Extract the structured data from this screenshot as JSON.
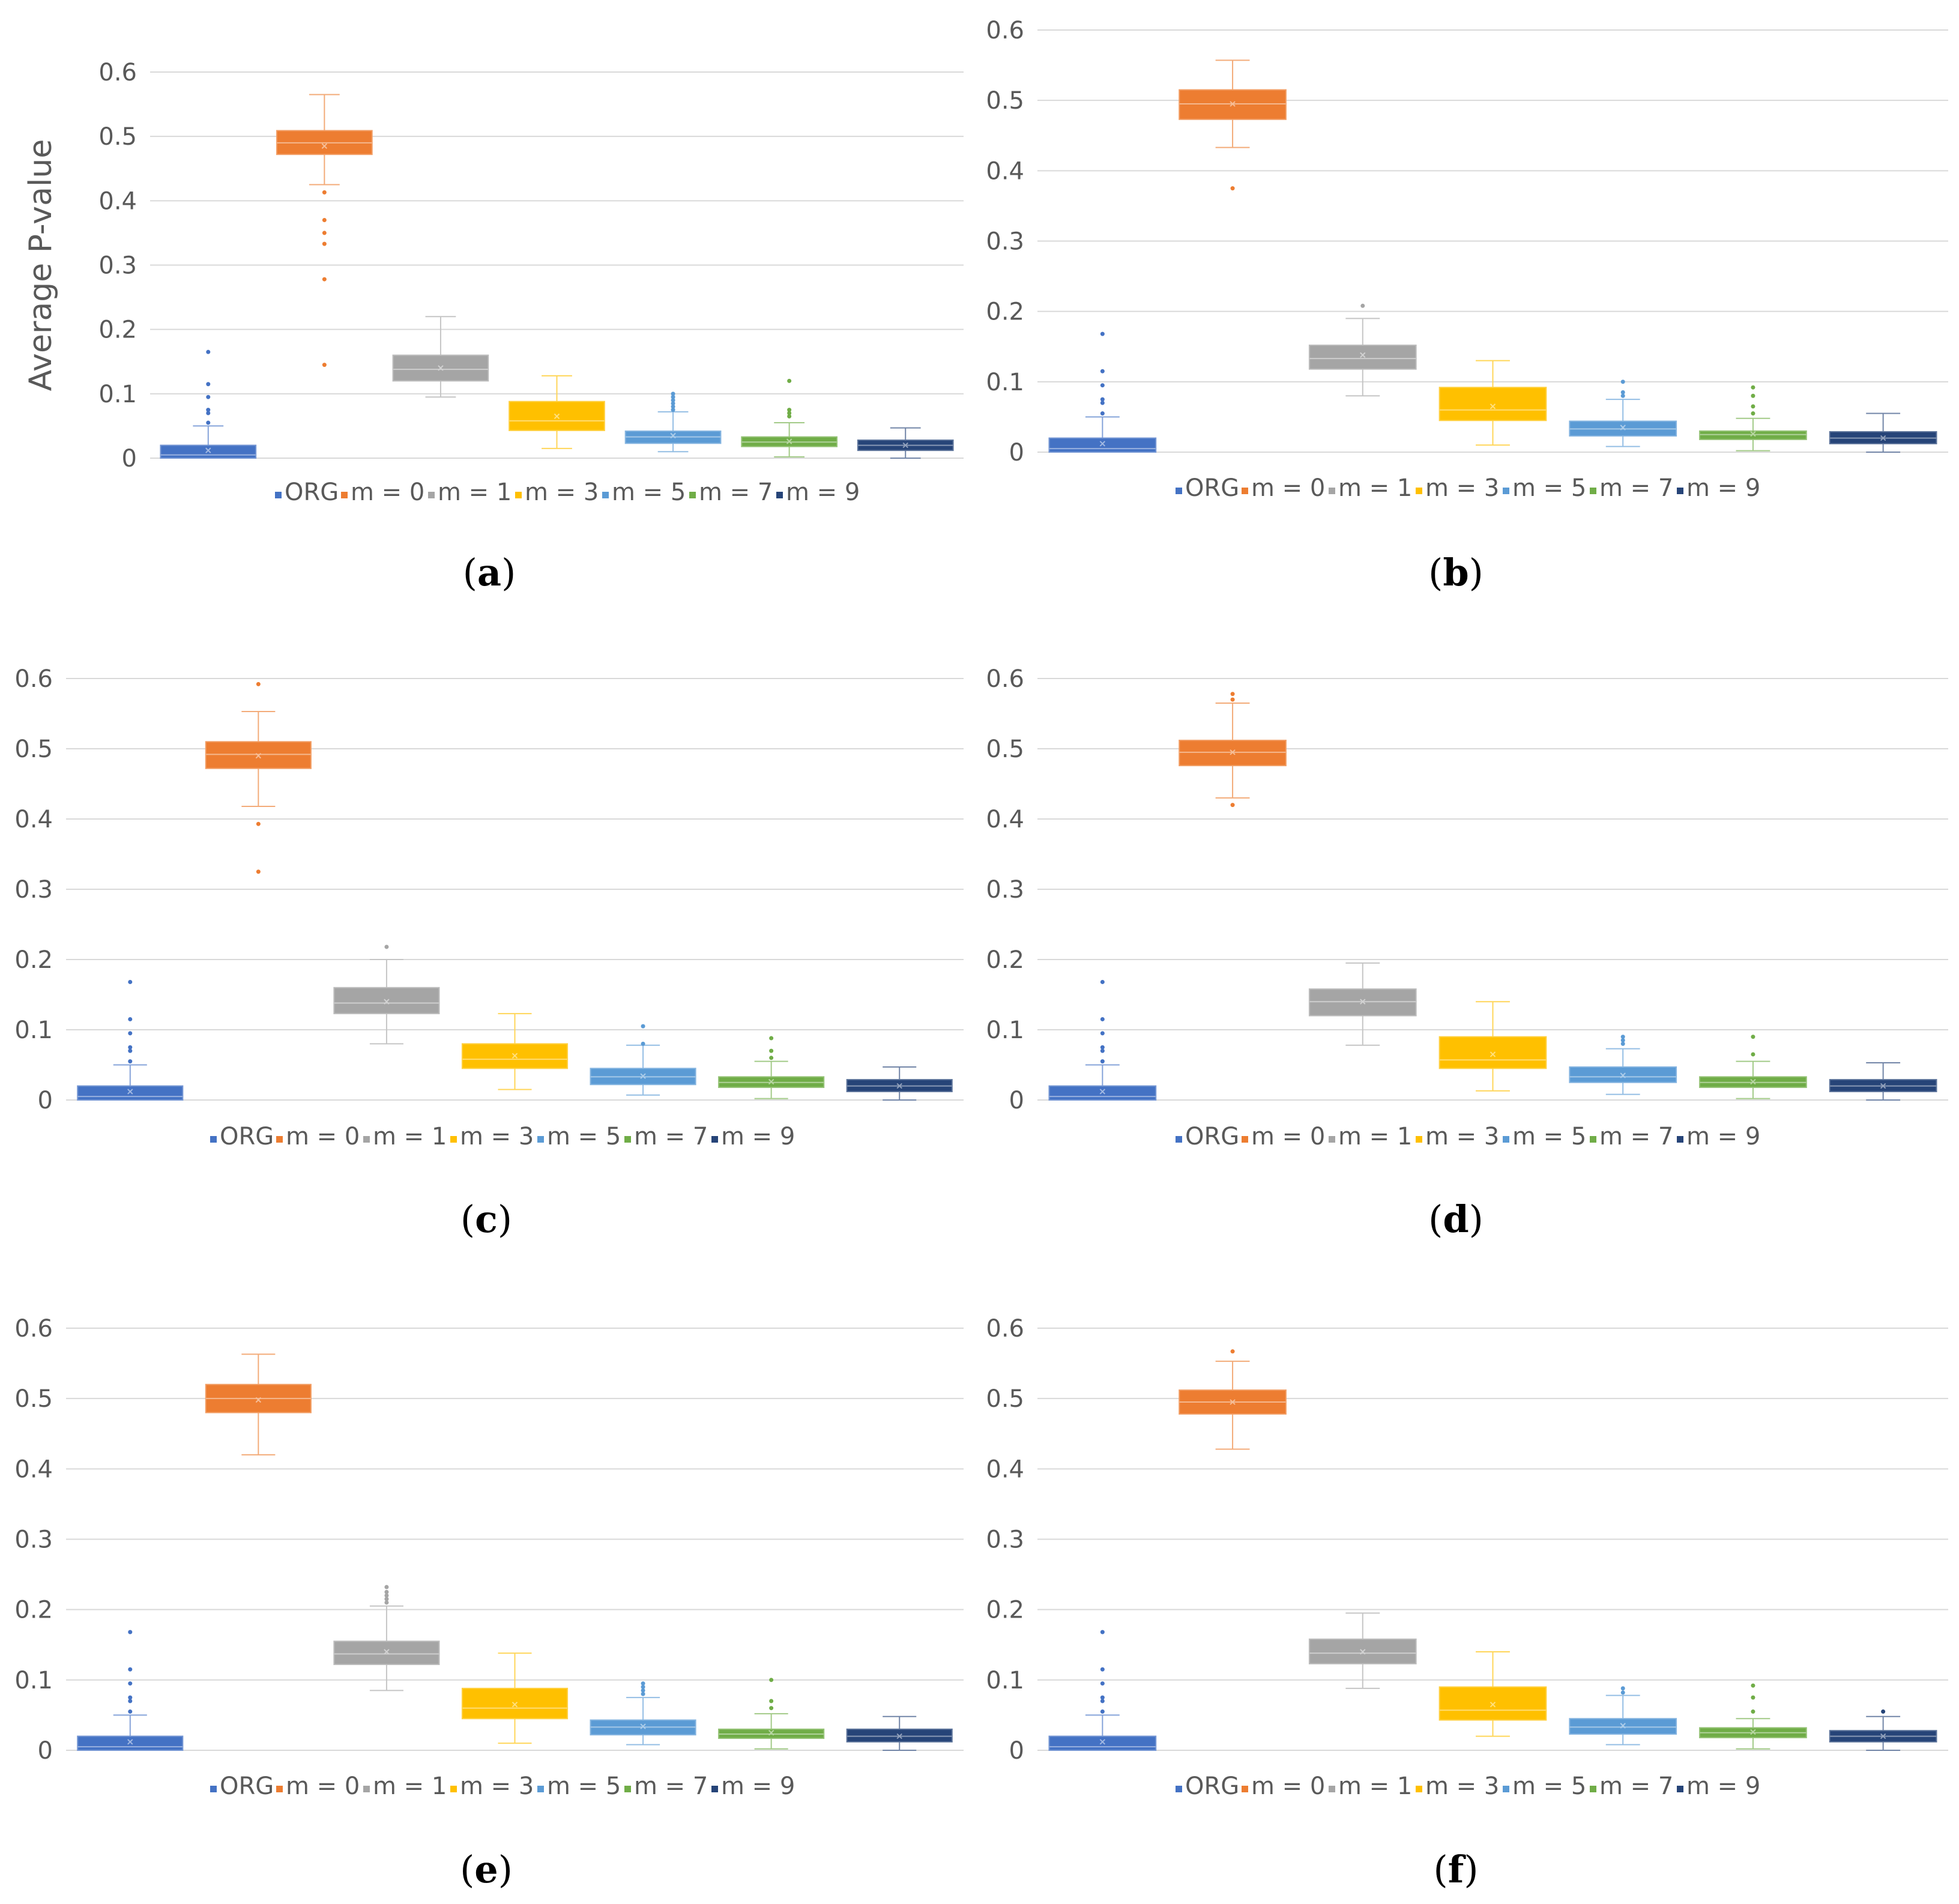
{
  "figure": {
    "panels_layout": "3 rows x 2 columns"
  },
  "chart_data": [
    {
      "type": "boxplot",
      "panel": "a",
      "caption_letter": "a",
      "ylabel": "Average P-value",
      "ylim": [
        0,
        0.6
      ],
      "yticks": [
        "0",
        "0.1",
        "0.2",
        "0.3",
        "0.4",
        "0.5",
        "0.6"
      ],
      "legend": [
        "ORG",
        "m = 0",
        "m = 1",
        "m = 3",
        "m = 5",
        "m = 7",
        "m = 9"
      ],
      "series": [
        {
          "name": "ORG",
          "color": "#4472C4",
          "wlo": 0,
          "q1": 0.0,
          "med": 0.005,
          "q3": 0.02,
          "whi": 0.05,
          "mean": 0.012,
          "outliers": [
            0.055,
            0.07,
            0.075,
            0.095,
            0.115,
            0.165
          ]
        },
        {
          "name": "m = 0",
          "color": "#ED7D31",
          "wlo": 0.425,
          "q1": 0.472,
          "med": 0.49,
          "q3": 0.509,
          "whi": 0.565,
          "mean": 0.485,
          "outliers": [
            0.145,
            0.278,
            0.333,
            0.35,
            0.37,
            0.413
          ]
        },
        {
          "name": "m = 1",
          "color": "#A5A5A5",
          "wlo": 0.095,
          "q1": 0.12,
          "med": 0.138,
          "q3": 0.16,
          "whi": 0.22,
          "mean": 0.14,
          "outliers": []
        },
        {
          "name": "m = 3",
          "color": "#FFC000",
          "wlo": 0.015,
          "q1": 0.043,
          "med": 0.058,
          "q3": 0.088,
          "whi": 0.128,
          "mean": 0.065,
          "outliers": []
        },
        {
          "name": "m = 5",
          "color": "#5B9BD5",
          "wlo": 0.01,
          "q1": 0.023,
          "med": 0.033,
          "q3": 0.042,
          "whi": 0.072,
          "mean": 0.035,
          "outliers": [
            0.075,
            0.08,
            0.085,
            0.09,
            0.095,
            0.1
          ]
        },
        {
          "name": "m = 7",
          "color": "#70AD47",
          "wlo": 0.002,
          "q1": 0.018,
          "med": 0.025,
          "q3": 0.033,
          "whi": 0.055,
          "mean": 0.026,
          "outliers": [
            0.065,
            0.07,
            0.075,
            0.12
          ]
        },
        {
          "name": "m = 9",
          "color": "#264478",
          "wlo": 0.0,
          "q1": 0.012,
          "med": 0.02,
          "q3": 0.028,
          "whi": 0.047,
          "mean": 0.02,
          "outliers": []
        }
      ]
    },
    {
      "type": "boxplot",
      "panel": "b",
      "caption_letter": "b",
      "ylabel": "",
      "ylim": [
        0,
        0.6
      ],
      "yticks": [
        "0",
        "0.1",
        "0.2",
        "0.3",
        "0.4",
        "0.5",
        "0.6"
      ],
      "legend": [
        "ORG",
        "m = 0",
        "m = 1",
        "m = 3",
        "m = 5",
        "m = 7",
        "m = 9"
      ],
      "series": [
        {
          "name": "ORG",
          "color": "#4472C4",
          "wlo": 0,
          "q1": 0.0,
          "med": 0.005,
          "q3": 0.02,
          "whi": 0.05,
          "mean": 0.012,
          "outliers": [
            0.055,
            0.07,
            0.075,
            0.095,
            0.115,
            0.168
          ]
        },
        {
          "name": "m = 0",
          "color": "#ED7D31",
          "wlo": 0.433,
          "q1": 0.473,
          "med": 0.495,
          "q3": 0.515,
          "whi": 0.557,
          "mean": 0.495,
          "outliers": [
            0.375
          ]
        },
        {
          "name": "m = 1",
          "color": "#A5A5A5",
          "wlo": 0.08,
          "q1": 0.118,
          "med": 0.133,
          "q3": 0.152,
          "whi": 0.19,
          "mean": 0.138,
          "outliers": [
            0.208
          ]
        },
        {
          "name": "m = 3",
          "color": "#FFC000",
          "wlo": 0.01,
          "q1": 0.045,
          "med": 0.06,
          "q3": 0.092,
          "whi": 0.13,
          "mean": 0.065,
          "outliers": []
        },
        {
          "name": "m = 5",
          "color": "#5B9BD5",
          "wlo": 0.008,
          "q1": 0.023,
          "med": 0.033,
          "q3": 0.044,
          "whi": 0.075,
          "mean": 0.035,
          "outliers": [
            0.08,
            0.085,
            0.1
          ]
        },
        {
          "name": "m = 7",
          "color": "#70AD47",
          "wlo": 0.002,
          "q1": 0.018,
          "med": 0.025,
          "q3": 0.03,
          "whi": 0.048,
          "mean": 0.026,
          "outliers": [
            0.055,
            0.065,
            0.08,
            0.092
          ]
        },
        {
          "name": "m = 9",
          "color": "#264478",
          "wlo": 0.0,
          "q1": 0.012,
          "med": 0.02,
          "q3": 0.029,
          "whi": 0.055,
          "mean": 0.02,
          "outliers": []
        }
      ]
    },
    {
      "type": "boxplot",
      "panel": "c",
      "caption_letter": "c",
      "ylabel": "",
      "ylim": [
        0,
        0.6
      ],
      "yticks": [
        "0",
        "0.1",
        "0.2",
        "0.3",
        "0.4",
        "0.5",
        "0.6"
      ],
      "legend": [
        "ORG",
        "m = 0",
        "m = 1",
        "m = 3",
        "m = 5",
        "m = 7",
        "m = 9"
      ],
      "series": [
        {
          "name": "ORG",
          "color": "#4472C4",
          "wlo": 0,
          "q1": 0.0,
          "med": 0.005,
          "q3": 0.02,
          "whi": 0.05,
          "mean": 0.012,
          "outliers": [
            0.055,
            0.07,
            0.075,
            0.095,
            0.115,
            0.168
          ]
        },
        {
          "name": "m = 0",
          "color": "#ED7D31",
          "wlo": 0.418,
          "q1": 0.472,
          "med": 0.492,
          "q3": 0.51,
          "whi": 0.553,
          "mean": 0.49,
          "outliers": [
            0.325,
            0.393,
            0.592
          ]
        },
        {
          "name": "m = 1",
          "color": "#A5A5A5",
          "wlo": 0.08,
          "q1": 0.123,
          "med": 0.138,
          "q3": 0.16,
          "whi": 0.2,
          "mean": 0.14,
          "outliers": [
            0.218
          ]
        },
        {
          "name": "m = 3",
          "color": "#FFC000",
          "wlo": 0.015,
          "q1": 0.045,
          "med": 0.058,
          "q3": 0.08,
          "whi": 0.123,
          "mean": 0.063,
          "outliers": []
        },
        {
          "name": "m = 5",
          "color": "#5B9BD5",
          "wlo": 0.007,
          "q1": 0.022,
          "med": 0.033,
          "q3": 0.045,
          "whi": 0.078,
          "mean": 0.034,
          "outliers": [
            0.08,
            0.105
          ]
        },
        {
          "name": "m = 7",
          "color": "#70AD47",
          "wlo": 0.002,
          "q1": 0.018,
          "med": 0.025,
          "q3": 0.033,
          "whi": 0.055,
          "mean": 0.026,
          "outliers": [
            0.06,
            0.07,
            0.088
          ]
        },
        {
          "name": "m = 9",
          "color": "#264478",
          "wlo": 0.0,
          "q1": 0.012,
          "med": 0.02,
          "q3": 0.029,
          "whi": 0.047,
          "mean": 0.02,
          "outliers": []
        }
      ]
    },
    {
      "type": "boxplot",
      "panel": "d",
      "caption_letter": "d",
      "ylabel": "",
      "ylim": [
        0,
        0.6
      ],
      "yticks": [
        "0",
        "0.1",
        "0.2",
        "0.3",
        "0.4",
        "0.5",
        "0.6"
      ],
      "legend": [
        "ORG",
        "m = 0",
        "m = 1",
        "m = 3",
        "m = 5",
        "m = 7",
        "m = 9"
      ],
      "series": [
        {
          "name": "ORG",
          "color": "#4472C4",
          "wlo": 0,
          "q1": 0.0,
          "med": 0.005,
          "q3": 0.02,
          "whi": 0.05,
          "mean": 0.012,
          "outliers": [
            0.055,
            0.07,
            0.075,
            0.095,
            0.115,
            0.168
          ]
        },
        {
          "name": "m = 0",
          "color": "#ED7D31",
          "wlo": 0.43,
          "q1": 0.476,
          "med": 0.495,
          "q3": 0.512,
          "whi": 0.565,
          "mean": 0.495,
          "outliers": [
            0.42,
            0.57,
            0.578
          ]
        },
        {
          "name": "m = 1",
          "color": "#A5A5A5",
          "wlo": 0.078,
          "q1": 0.12,
          "med": 0.14,
          "q3": 0.158,
          "whi": 0.195,
          "mean": 0.14,
          "outliers": []
        },
        {
          "name": "m = 3",
          "color": "#FFC000",
          "wlo": 0.013,
          "q1": 0.045,
          "med": 0.057,
          "q3": 0.09,
          "whi": 0.14,
          "mean": 0.065,
          "outliers": []
        },
        {
          "name": "m = 5",
          "color": "#5B9BD5",
          "wlo": 0.008,
          "q1": 0.025,
          "med": 0.033,
          "q3": 0.047,
          "whi": 0.073,
          "mean": 0.035,
          "outliers": [
            0.08,
            0.085,
            0.09
          ]
        },
        {
          "name": "m = 7",
          "color": "#70AD47",
          "wlo": 0.002,
          "q1": 0.018,
          "med": 0.025,
          "q3": 0.033,
          "whi": 0.055,
          "mean": 0.026,
          "outliers": [
            0.065,
            0.09
          ]
        },
        {
          "name": "m = 9",
          "color": "#264478",
          "wlo": 0.0,
          "q1": 0.012,
          "med": 0.02,
          "q3": 0.029,
          "whi": 0.053,
          "mean": 0.02,
          "outliers": []
        }
      ]
    },
    {
      "type": "boxplot",
      "panel": "e",
      "caption_letter": "e",
      "ylabel": "",
      "ylim": [
        0,
        0.6
      ],
      "yticks": [
        "0",
        "0.1",
        "0.2",
        "0.3",
        "0.4",
        "0.5",
        "0.6"
      ],
      "legend": [
        "ORG",
        "m = 0",
        "m = 1",
        "m = 3",
        "m = 5",
        "m = 7",
        "m = 9"
      ],
      "series": [
        {
          "name": "ORG",
          "color": "#4472C4",
          "wlo": 0,
          "q1": 0.0,
          "med": 0.005,
          "q3": 0.02,
          "whi": 0.05,
          "mean": 0.012,
          "outliers": [
            0.055,
            0.07,
            0.075,
            0.095,
            0.115,
            0.168
          ]
        },
        {
          "name": "m = 0",
          "color": "#ED7D31",
          "wlo": 0.42,
          "q1": 0.48,
          "med": 0.5,
          "q3": 0.52,
          "whi": 0.563,
          "mean": 0.498,
          "outliers": []
        },
        {
          "name": "m = 1",
          "color": "#A5A5A5",
          "wlo": 0.085,
          "q1": 0.122,
          "med": 0.137,
          "q3": 0.155,
          "whi": 0.205,
          "mean": 0.14,
          "outliers": [
            0.21,
            0.215,
            0.22,
            0.225,
            0.232
          ]
        },
        {
          "name": "m = 3",
          "color": "#FFC000",
          "wlo": 0.01,
          "q1": 0.045,
          "med": 0.06,
          "q3": 0.088,
          "whi": 0.138,
          "mean": 0.065,
          "outliers": []
        },
        {
          "name": "m = 5",
          "color": "#5B9BD5",
          "wlo": 0.008,
          "q1": 0.022,
          "med": 0.033,
          "q3": 0.043,
          "whi": 0.075,
          "mean": 0.034,
          "outliers": [
            0.08,
            0.085,
            0.09,
            0.095
          ]
        },
        {
          "name": "m = 7",
          "color": "#70AD47",
          "wlo": 0.002,
          "q1": 0.017,
          "med": 0.023,
          "q3": 0.03,
          "whi": 0.052,
          "mean": 0.025,
          "outliers": [
            0.06,
            0.07,
            0.1
          ]
        },
        {
          "name": "m = 9",
          "color": "#264478",
          "wlo": 0.0,
          "q1": 0.012,
          "med": 0.02,
          "q3": 0.03,
          "whi": 0.048,
          "mean": 0.02,
          "outliers": []
        }
      ]
    },
    {
      "type": "boxplot",
      "panel": "f",
      "caption_letter": "f",
      "ylabel": "",
      "ylim": [
        0,
        0.6
      ],
      "yticks": [
        "0",
        "0.1",
        "0.2",
        "0.3",
        "0.4",
        "0.5",
        "0.6"
      ],
      "legend": [
        "ORG",
        "m = 0",
        "m = 1",
        "m = 3",
        "m = 5",
        "m = 7",
        "m = 9"
      ],
      "series": [
        {
          "name": "ORG",
          "color": "#4472C4",
          "wlo": 0,
          "q1": 0.0,
          "med": 0.005,
          "q3": 0.02,
          "whi": 0.05,
          "mean": 0.012,
          "outliers": [
            0.055,
            0.07,
            0.075,
            0.095,
            0.115,
            0.168
          ]
        },
        {
          "name": "m = 0",
          "color": "#ED7D31",
          "wlo": 0.428,
          "q1": 0.478,
          "med": 0.495,
          "q3": 0.512,
          "whi": 0.553,
          "mean": 0.495,
          "outliers": [
            0.567
          ]
        },
        {
          "name": "m = 1",
          "color": "#A5A5A5",
          "wlo": 0.088,
          "q1": 0.123,
          "med": 0.138,
          "q3": 0.158,
          "whi": 0.195,
          "mean": 0.14,
          "outliers": []
        },
        {
          "name": "m = 3",
          "color": "#FFC000",
          "wlo": 0.02,
          "q1": 0.043,
          "med": 0.057,
          "q3": 0.09,
          "whi": 0.14,
          "mean": 0.065,
          "outliers": []
        },
        {
          "name": "m = 5",
          "color": "#5B9BD5",
          "wlo": 0.008,
          "q1": 0.023,
          "med": 0.033,
          "q3": 0.045,
          "whi": 0.078,
          "mean": 0.035,
          "outliers": [
            0.082,
            0.088
          ]
        },
        {
          "name": "m = 7",
          "color": "#70AD47",
          "wlo": 0.002,
          "q1": 0.018,
          "med": 0.025,
          "q3": 0.032,
          "whi": 0.045,
          "mean": 0.026,
          "outliers": [
            0.055,
            0.075,
            0.092
          ]
        },
        {
          "name": "m = 9",
          "color": "#264478",
          "wlo": 0.0,
          "q1": 0.012,
          "med": 0.02,
          "q3": 0.028,
          "whi": 0.048,
          "mean": 0.02,
          "outliers": [
            0.055
          ]
        }
      ]
    }
  ]
}
